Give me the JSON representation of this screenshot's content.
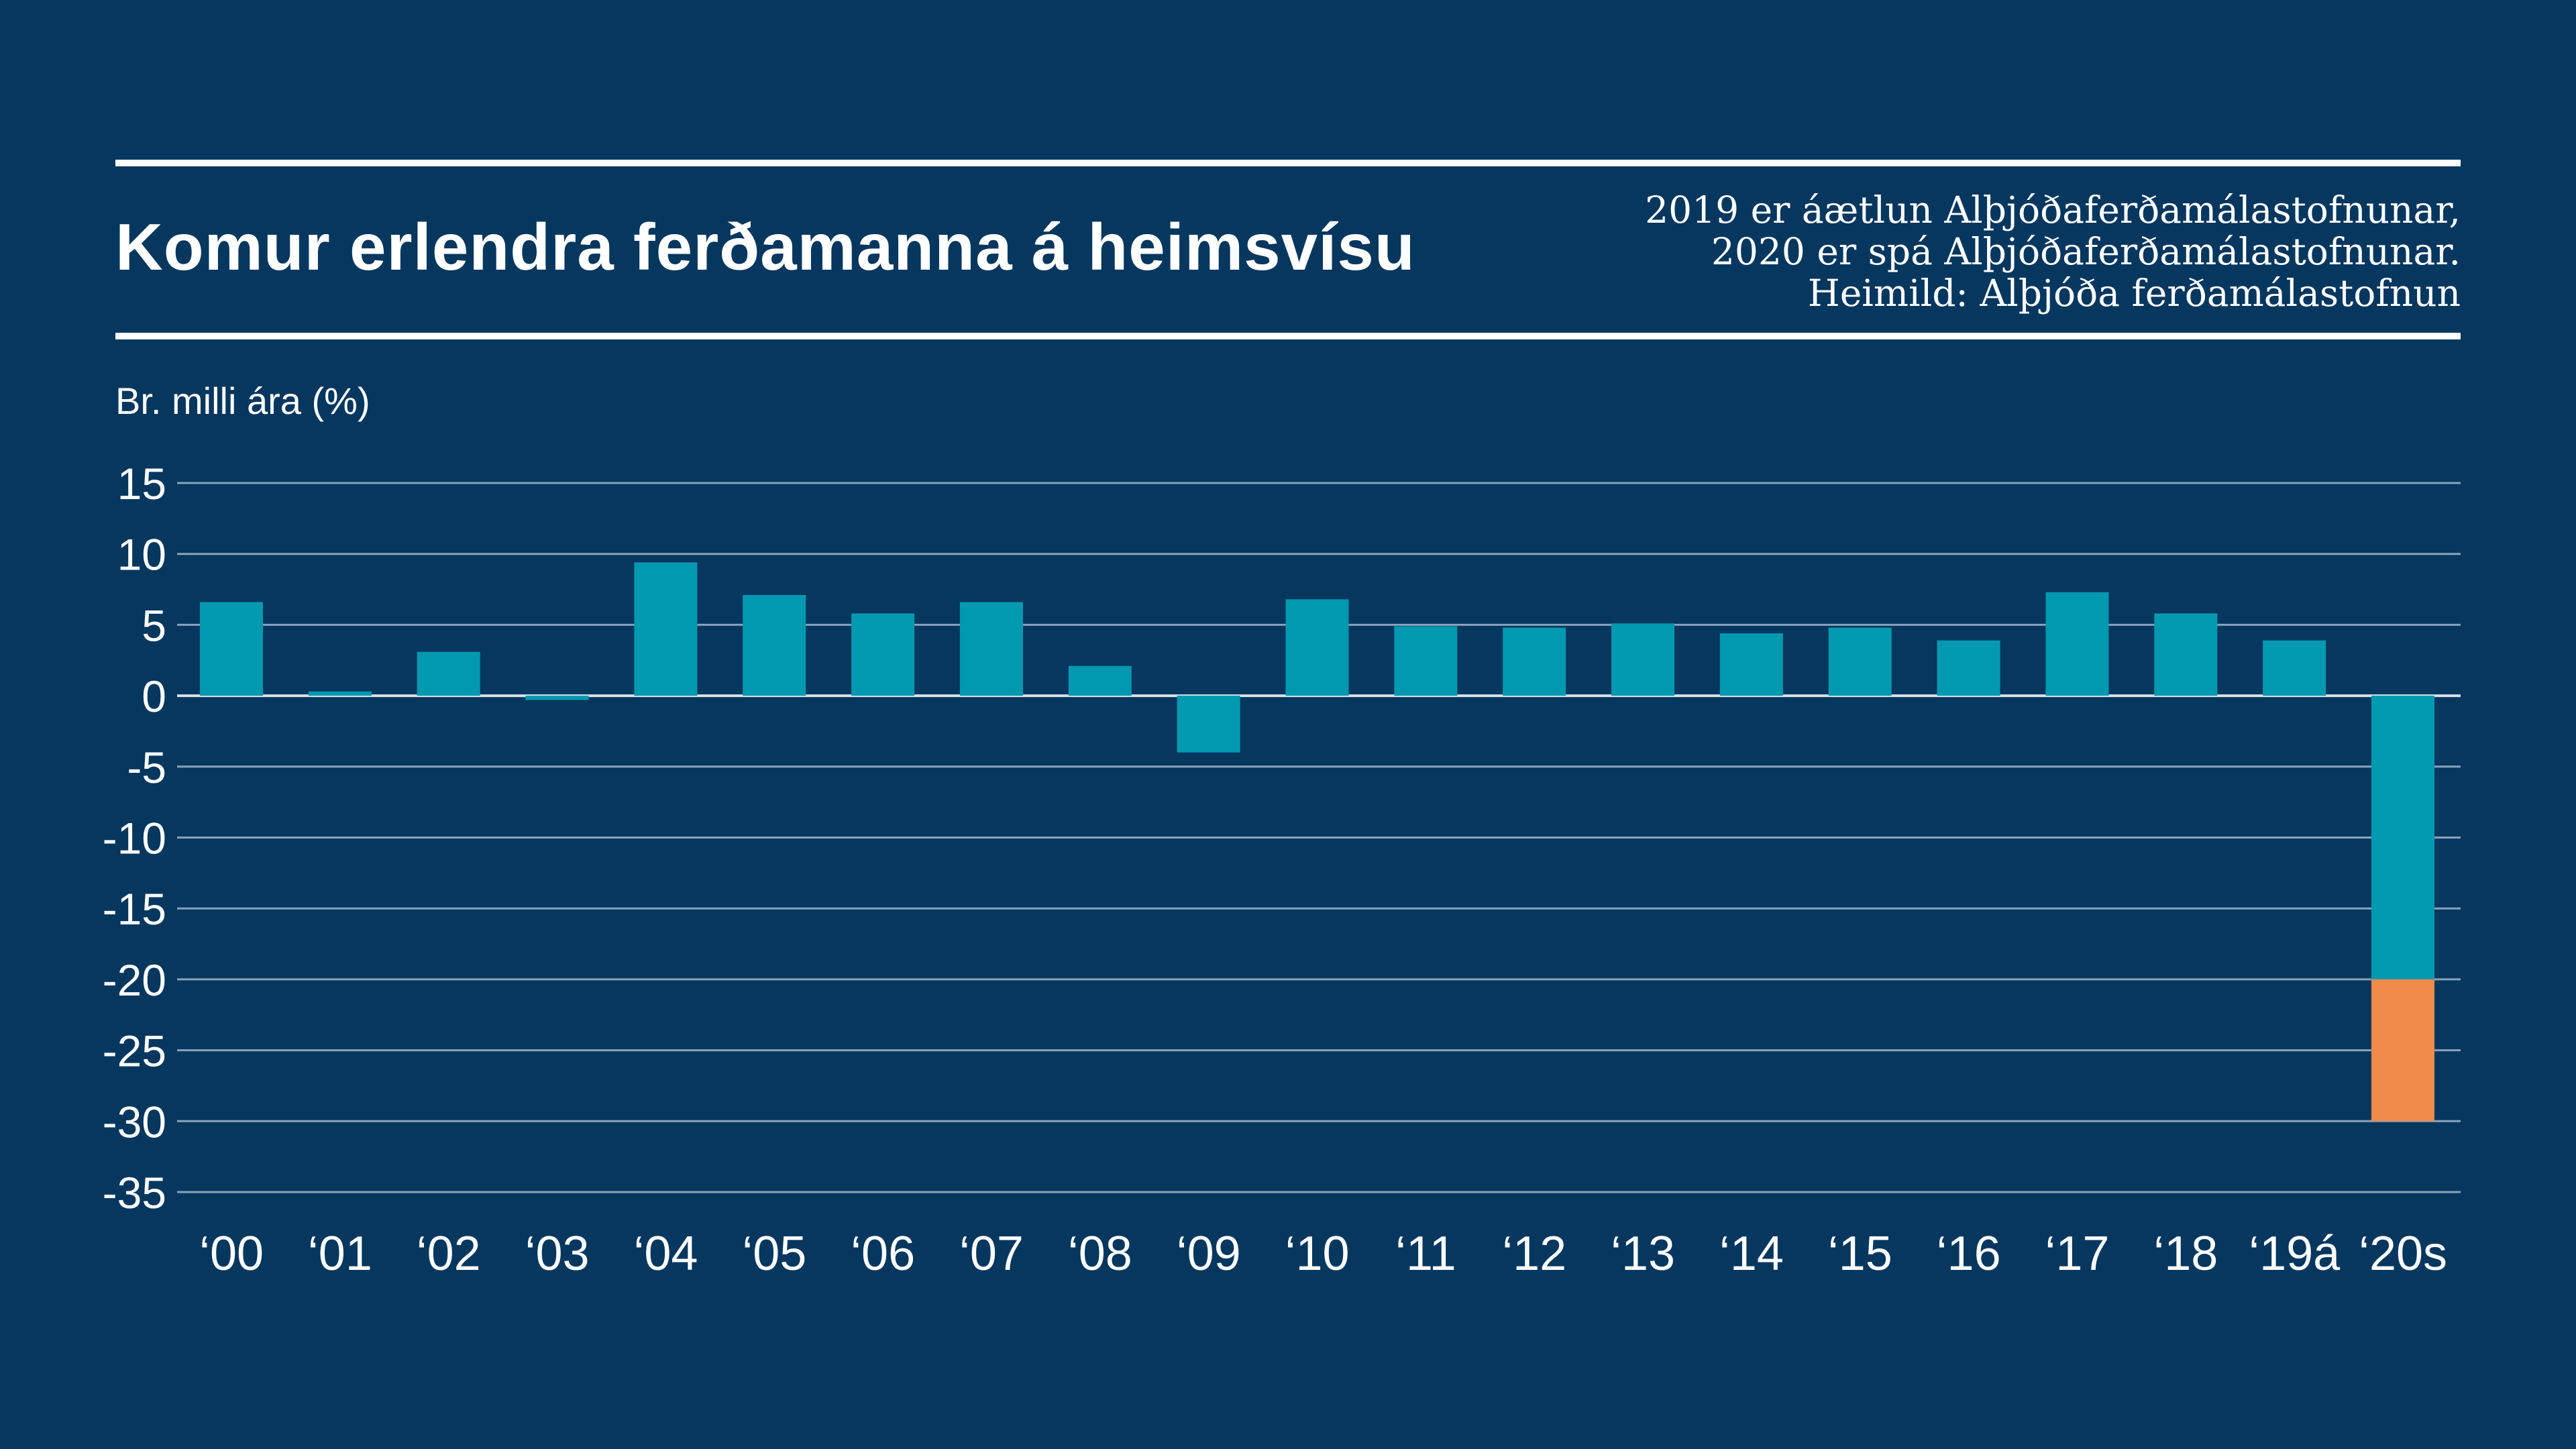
{
  "header": {
    "title": "Komur erlendra ferðamanna á heimsvísu",
    "notes": [
      "2019 er áætlun Alþjóðaferðamálastofnunar,",
      "2020 er spá Alþjóðaferðamálastofnunar.",
      "Heimild: Alþjóða ferðamálastofnun"
    ]
  },
  "colors": {
    "background": "#05375f",
    "bar": "#0099b0",
    "bar_secondary": "#f28a4a",
    "grid": "#8aa3bb",
    "text": "#ffffff"
  },
  "chart_data": {
    "type": "bar",
    "ylabel": "Br. milli ára (%)",
    "ylim": [
      -35,
      15
    ],
    "yticks": [
      15,
      10,
      5,
      0,
      -5,
      -10,
      -15,
      -20,
      -25,
      -30,
      -35
    ],
    "grid": true,
    "categories": [
      "‘00",
      "‘01",
      "‘02",
      "‘03",
      "‘04",
      "‘05",
      "‘06",
      "‘07",
      "‘08",
      "‘09",
      "‘10",
      "‘11",
      "‘12",
      "‘13",
      "‘14",
      "‘15",
      "‘16",
      "‘17",
      "‘18",
      "‘19á",
      "‘20s"
    ],
    "values": [
      6.6,
      0.3,
      3.1,
      -0.3,
      9.4,
      7.1,
      5.8,
      6.6,
      2.1,
      -4.0,
      6.8,
      4.9,
      4.8,
      5.1,
      4.4,
      4.8,
      3.9,
      7.3,
      5.8,
      3.9,
      -30.0
    ],
    "stacked_segment": {
      "category": "‘20s",
      "primary_to": -20,
      "secondary_from": -20,
      "secondary_to": -30
    }
  }
}
